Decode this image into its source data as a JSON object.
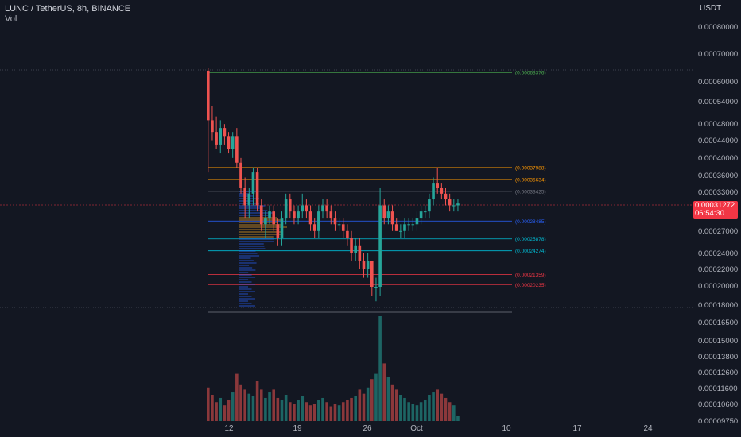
{
  "header": {
    "title": "LUNC / TetherUS, 8h, BINANCE",
    "vol_label": "Vol"
  },
  "price_axis": {
    "unit": "USDT",
    "ticks": [
      "0.00080000",
      "0.00070000",
      "0.00060000",
      "0.00054000",
      "0.00048000",
      "0.00044000",
      "0.00040000",
      "0.00036000",
      "0.00033000",
      "0.00027000",
      "0.00024000",
      "0.00022000",
      "0.00020000",
      "0.00018000",
      "0.00016500",
      "0.00015000",
      "0.00013800",
      "0.00012600",
      "0.00011600",
      "0.00010600",
      "0.00009750"
    ],
    "current_price": "0.00031272",
    "countdown": "06:54:30"
  },
  "time_axis": {
    "ticks": [
      "12",
      "19",
      "26",
      "Oct",
      "10",
      "17",
      "24"
    ]
  },
  "colors": {
    "up": "#26a69a",
    "down": "#ef5350",
    "background": "#131722",
    "text": "#b2b5be"
  },
  "chart_data": {
    "type": "candlestick",
    "title": "LUNC / TetherUS, 8h, BINANCE",
    "ylabel": "USDT",
    "ylim": [
      0.00018,
      0.0008
    ],
    "y_scale": "log",
    "x_ticks": [
      "12",
      "19",
      "26",
      "Oct",
      "10",
      "17",
      "24"
    ],
    "fib_levels": [
      {
        "label": "(0.00063376)",
        "value": 0.00063376,
        "color": "#4caf50"
      },
      {
        "label": "(0.00037988)",
        "value": 0.00037988,
        "color": "#ff9800"
      },
      {
        "label": "(0.00035634)",
        "value": 0.00035634,
        "color": "#ff9800"
      },
      {
        "label": "(0.00033425)",
        "value": 0.00033425,
        "color": "#787b86"
      },
      {
        "label": "(0.00028485)",
        "value": 0.00028485,
        "color": "#2962ff"
      },
      {
        "label": "(0.00025878)",
        "value": 0.00025878,
        "color": "#00bcd4"
      },
      {
        "label": "(0.00024274)",
        "value": 0.00024274,
        "color": "#00bcd4"
      },
      {
        "label": "(0.00021359)",
        "value": 0.00021359,
        "color": "#f23645"
      },
      {
        "label": "(0.00020235)",
        "value": 0.00020235,
        "color": "#f23645"
      }
    ],
    "candles": [
      [
        0.00064,
        0.00065,
        0.00037,
        0.00049
      ],
      [
        0.00049,
        0.00053,
        0.00044,
        0.00046
      ],
      [
        0.00046,
        0.0005,
        0.00042,
        0.00043
      ],
      [
        0.00043,
        0.00049,
        0.00041,
        0.00047
      ],
      [
        0.00047,
        0.00048,
        0.00043,
        0.00045
      ],
      [
        0.00045,
        0.00046,
        0.00041,
        0.00042
      ],
      [
        0.00042,
        0.00046,
        0.0004,
        0.00045
      ],
      [
        0.00045,
        0.00047,
        0.00038,
        0.00039
      ],
      [
        0.00039,
        0.0004,
        0.00033,
        0.00034
      ],
      [
        0.00034,
        0.00036,
        0.00029,
        0.00031
      ],
      [
        0.00031,
        0.00034,
        0.00029,
        0.00033
      ],
      [
        0.00033,
        0.00038,
        0.00031,
        0.00037
      ],
      [
        0.00037,
        0.00038,
        0.0003,
        0.00031
      ],
      [
        0.00031,
        0.00032,
        0.00027,
        0.00028
      ],
      [
        0.00028,
        0.0003,
        0.00026,
        0.00029
      ],
      [
        0.00029,
        0.00031,
        0.00028,
        0.0003
      ],
      [
        0.0003,
        0.00031,
        0.00027,
        0.00028
      ],
      [
        0.00028,
        0.00029,
        0.00025,
        0.00026
      ],
      [
        0.00026,
        0.0003,
        0.00025,
        0.00029
      ],
      [
        0.00029,
        0.00033,
        0.00028,
        0.00032
      ],
      [
        0.00032,
        0.00033,
        0.00029,
        0.0003
      ],
      [
        0.0003,
        0.00031,
        0.00028,
        0.00029
      ],
      [
        0.00029,
        0.00031,
        0.00028,
        0.0003
      ],
      [
        0.0003,
        0.00033,
        0.00029,
        0.00031
      ],
      [
        0.00031,
        0.00032,
        0.00029,
        0.0003
      ],
      [
        0.0003,
        0.00031,
        0.00027,
        0.00028
      ],
      [
        0.00028,
        0.00029,
        0.00026,
        0.00027
      ],
      [
        0.00027,
        0.00031,
        0.00026,
        0.0003
      ],
      [
        0.0003,
        0.00032,
        0.00029,
        0.00031
      ],
      [
        0.00031,
        0.00032,
        0.00029,
        0.0003
      ],
      [
        0.0003,
        0.00031,
        0.00028,
        0.00029
      ],
      [
        0.00029,
        0.0003,
        0.00027,
        0.00028
      ],
      [
        0.00028,
        0.00029,
        0.00027,
        0.00028
      ],
      [
        0.00028,
        0.00029,
        0.00026,
        0.00027
      ],
      [
        0.00027,
        0.00028,
        0.00025,
        0.00026
      ],
      [
        0.00026,
        0.00027,
        0.00023,
        0.00024
      ],
      [
        0.00024,
        0.00026,
        0.00023,
        0.00025
      ],
      [
        0.00025,
        0.00026,
        0.00022,
        0.00023
      ],
      [
        0.00023,
        0.00024,
        0.00021,
        0.00022
      ],
      [
        0.00022,
        0.00024,
        0.00021,
        0.00023
      ],
      [
        0.00023,
        0.00023,
        0.00019,
        0.0002
      ],
      [
        0.0002,
        0.00021,
        0.000185,
        0.0002
      ],
      [
        0.0002,
        0.00034,
        0.00019,
        0.00031
      ],
      [
        0.00031,
        0.00032,
        0.00028,
        0.00029
      ],
      [
        0.00029,
        0.00031,
        0.00028,
        0.0003
      ],
      [
        0.0003,
        0.00031,
        0.00027,
        0.00028
      ],
      [
        0.00028,
        0.00029,
        0.00027,
        0.00027
      ],
      [
        0.00027,
        0.00028,
        0.00026,
        0.00027
      ],
      [
        0.00027,
        0.00029,
        0.00026,
        0.00028
      ],
      [
        0.00028,
        0.00029,
        0.00027,
        0.00028
      ],
      [
        0.00028,
        0.00029,
        0.00027,
        0.00028
      ],
      [
        0.00028,
        0.0003,
        0.00027,
        0.00029
      ],
      [
        0.00029,
        0.00031,
        0.00028,
        0.0003
      ],
      [
        0.0003,
        0.00031,
        0.00029,
        0.0003
      ],
      [
        0.0003,
        0.00033,
        0.00029,
        0.00032
      ],
      [
        0.00032,
        0.00036,
        0.00031,
        0.00035
      ],
      [
        0.00035,
        0.00038,
        0.00033,
        0.00034
      ],
      [
        0.00034,
        0.00035,
        0.00032,
        0.00033
      ],
      [
        0.00033,
        0.00034,
        0.00031,
        0.00032
      ],
      [
        0.00032,
        0.00033,
        0.0003,
        0.00031
      ],
      [
        0.00031,
        0.00032,
        0.0003,
        0.00031
      ],
      [
        0.00031,
        0.00032,
        0.0003,
        0.000313
      ]
    ],
    "volume": [
      0.32,
      0.25,
      0.18,
      0.22,
      0.15,
      0.2,
      0.28,
      0.45,
      0.35,
      0.3,
      0.26,
      0.24,
      0.38,
      0.3,
      0.22,
      0.28,
      0.3,
      0.22,
      0.2,
      0.25,
      0.18,
      0.16,
      0.2,
      0.24,
      0.18,
      0.15,
      0.16,
      0.2,
      0.22,
      0.18,
      0.14,
      0.16,
      0.15,
      0.18,
      0.2,
      0.22,
      0.24,
      0.3,
      0.26,
      0.32,
      0.4,
      0.45,
      1.0,
      0.55,
      0.42,
      0.35,
      0.3,
      0.25,
      0.22,
      0.18,
      0.16,
      0.15,
      0.18,
      0.2,
      0.25,
      0.28,
      0.3,
      0.26,
      0.22,
      0.18,
      0.15,
      0.05
    ]
  }
}
